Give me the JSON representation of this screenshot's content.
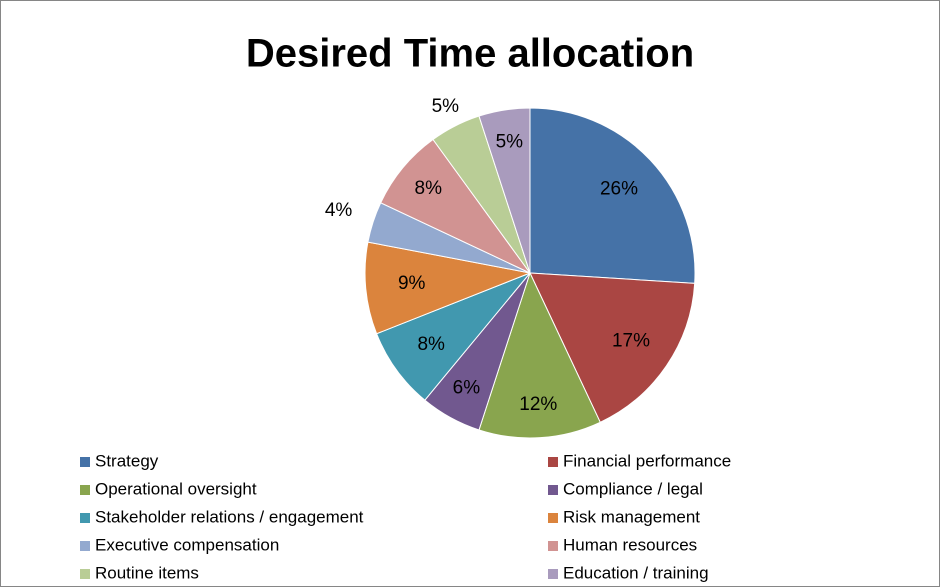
{
  "chart_data": {
    "type": "pie",
    "title": "Desired Time allocation",
    "categories": [
      "Strategy",
      "Financial performance",
      "Operational oversight",
      "Compliance / legal",
      "Stakeholder relations / engagement",
      "Risk management",
      "Executive compensation",
      "Human resources",
      "Routine items",
      "Education / training"
    ],
    "values": [
      26,
      17,
      12,
      6,
      8,
      9,
      4,
      8,
      5,
      5
    ],
    "value_labels": [
      "26%",
      "17%",
      "12%",
      "6%",
      "8%",
      "9%",
      "4%",
      "8%",
      "5%",
      "5%"
    ],
    "colors": [
      "#4572a7",
      "#aa4643",
      "#89a54e",
      "#71588f",
      "#4198af",
      "#db843d",
      "#93a9cf",
      "#d19392",
      "#b9cd96",
      "#a99bbd"
    ],
    "legend": "bottom"
  }
}
